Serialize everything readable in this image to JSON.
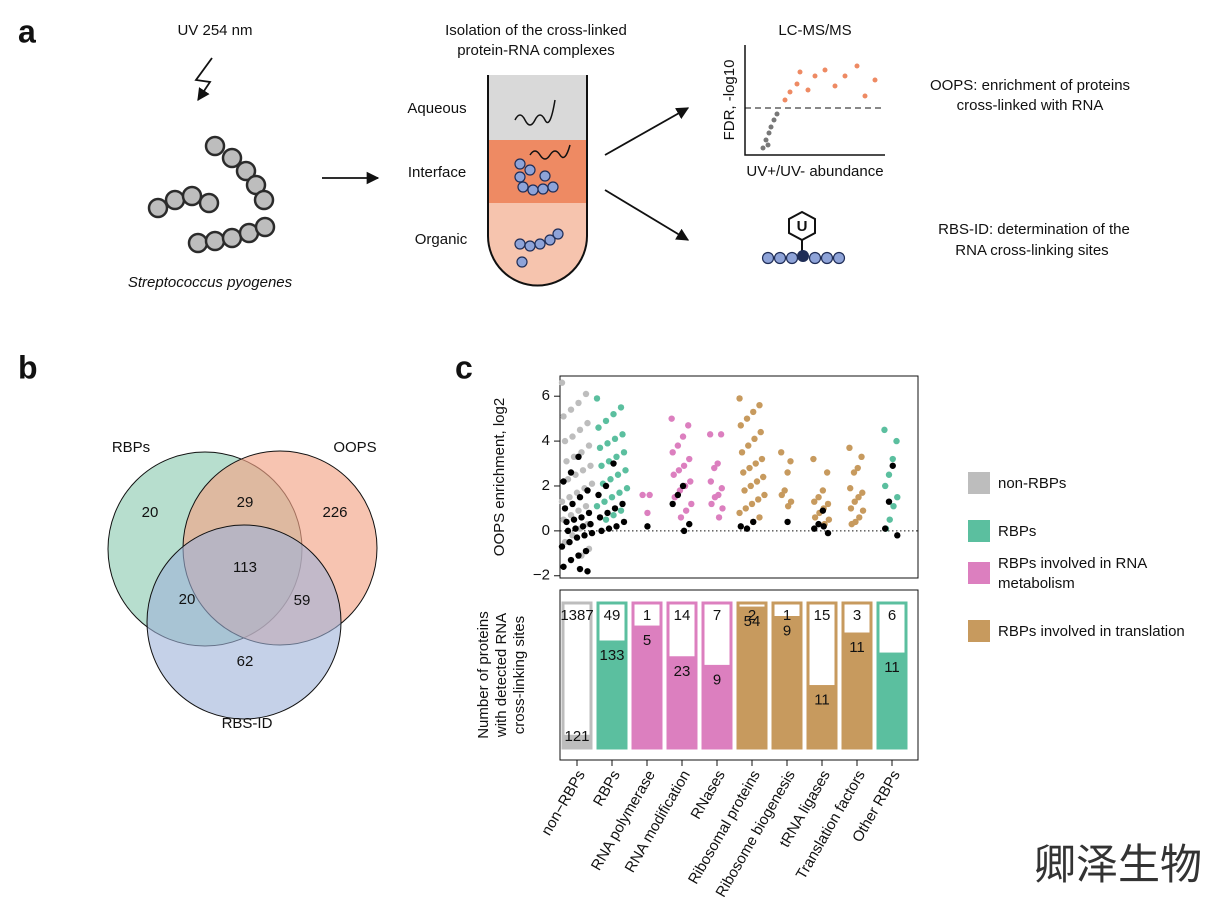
{
  "panel_a": {
    "label": "a",
    "uv": "UV 254 nm",
    "organism": "Streptococcus pyogenes",
    "tube_title": [
      "Isolation of the cross-linked",
      "protein-RNA complexes"
    ],
    "phases": [
      "Aqueous",
      "Interface",
      "Organic"
    ],
    "ms_title": "LC-MS/MS",
    "ms_ylabel": "FDR, -log10",
    "ms_xlabel": "UV+/UV- abundance",
    "oops": [
      "OOPS: enrichment of proteins",
      "cross-linked with RNA"
    ],
    "rbsid": [
      "RBS-ID: determination of the",
      "RNA cross-linking sites"
    ],
    "nucleotide": "U"
  },
  "panel_b": {
    "label": "b",
    "sets": [
      "RBPs",
      "OOPS",
      "RBS-ID"
    ],
    "regions": [
      20,
      29,
      226,
      113,
      20,
      59,
      62
    ]
  },
  "panel_c": {
    "label": "c",
    "categories": [
      "non−RBPs",
      "RBPs",
      "RNA polymerase",
      "RNA modification",
      "RNases",
      "Ribosomal proteins",
      "Ribosome biogenesis",
      "tRNA ligases",
      "Translation factors",
      "Other RBPs"
    ],
    "colors": [
      "#bdbdbd",
      "#5bbf9f",
      "#dc7fbf",
      "#dc7fbf",
      "#dc7fbf",
      "#c79a5e",
      "#c79a5e",
      "#c79a5e",
      "#c79a5e",
      "#5bbf9f"
    ],
    "ylabel": "OOPS enrichment, log2",
    "ylim": [
      -2.1,
      6.9
    ],
    "yticks": [
      {
        "value": -2,
        "label": "−2"
      },
      0,
      2,
      4,
      6
    ],
    "points": [
      {
        "other": [
          6.6,
          6.1,
          5.7,
          5.4,
          5.1,
          4.8,
          4.5,
          4.2,
          4.0,
          3.8,
          3.5,
          3.3,
          3.1,
          2.9,
          2.7,
          2.5,
          2.3,
          2.1,
          1.9,
          1.7,
          1.5,
          1.3,
          1.1,
          0.9,
          0.7,
          0.5,
          0.3,
          0.1,
          -0.2,
          -0.5,
          -0.8,
          -1.1
        ],
        "detected": [
          3.3,
          2.6,
          2.2,
          1.8,
          1.5,
          1.2,
          1.0,
          0.8,
          0.6,
          0.5,
          0.4,
          0.3,
          0.2,
          0.1,
          0.0,
          -0.1,
          -0.2,
          -0.3,
          -0.5,
          -0.7,
          -0.9,
          -1.1,
          -1.3,
          -1.6,
          -1.8,
          -1.7
        ]
      },
      {
        "other": [
          5.9,
          5.5,
          5.2,
          4.9,
          4.6,
          4.3,
          4.1,
          3.9,
          3.7,
          3.5,
          3.3,
          3.1,
          2.9,
          2.7,
          2.5,
          2.3,
          2.1,
          1.9,
          1.7,
          1.5,
          1.3,
          1.1,
          0.9,
          0.7,
          0.5
        ],
        "detected": [
          3.0,
          2.0,
          1.6,
          1.2,
          1.0,
          0.8,
          0.6,
          0.4,
          0.2,
          0.1,
          0.0
        ]
      },
      {
        "other": [
          1.6,
          1.6,
          0.8
        ],
        "detected": [
          0.2
        ]
      },
      {
        "other": [
          5.0,
          4.7,
          4.2,
          3.8,
          3.5,
          3.2,
          2.9,
          2.7,
          2.5,
          2.2,
          2.0,
          1.8,
          1.5,
          1.2,
          0.9,
          0.6
        ],
        "detected": [
          2.0,
          1.6,
          1.2,
          0.3,
          0.0
        ]
      },
      {
        "other": [
          4.3,
          4.3,
          3.0,
          2.8,
          2.2,
          1.9,
          1.6,
          1.5,
          1.2,
          1.0,
          0.6
        ],
        "detected": []
      },
      {
        "other": [
          5.9,
          5.6,
          5.3,
          5.0,
          4.7,
          4.4,
          4.1,
          3.8,
          3.5,
          3.2,
          3.0,
          2.8,
          2.6,
          2.4,
          2.2,
          2.0,
          1.8,
          1.6,
          1.4,
          1.2,
          1.0,
          0.8,
          0.6,
          0.4
        ],
        "detected": [
          0.4,
          0.1,
          0.2
        ]
      },
      {
        "other": [
          3.5,
          3.1,
          2.6,
          1.8,
          1.6,
          1.3,
          1.1
        ],
        "detected": [
          0.4
        ]
      },
      {
        "other": [
          3.2,
          2.6,
          1.8,
          1.5,
          1.3,
          1.2,
          1.0,
          0.8,
          0.6,
          0.5,
          0.3
        ],
        "detected": [
          0.9,
          0.3,
          0.1,
          -0.1,
          0.2
        ]
      },
      {
        "other": [
          3.7,
          3.3,
          2.8,
          2.6,
          1.9,
          1.7,
          1.5,
          1.3,
          1.0,
          0.9,
          0.6,
          0.4,
          0.3
        ],
        "detected": []
      },
      {
        "other": [
          4.5,
          4.0,
          3.2,
          2.5,
          2.0,
          1.5,
          1.1,
          0.5,
          0.1
        ],
        "detected": [
          2.9,
          1.3,
          0.1,
          -0.2
        ]
      }
    ],
    "bar_ylabel": [
      "Number of proteins",
      "with detected RNA",
      "cross-linking sites"
    ],
    "detected": [
      121,
      133,
      5,
      23,
      9,
      54,
      9,
      11,
      11,
      11
    ],
    "not_detected": [
      1387,
      49,
      1,
      14,
      7,
      2,
      1,
      15,
      3,
      6
    ],
    "legend": [
      {
        "lines": [
          "non-RBPs"
        ],
        "color": "#bdbdbd"
      },
      {
        "lines": [
          "RBPs"
        ],
        "color": "#5bbf9f"
      },
      {
        "lines": [
          "RBPs involved in RNA",
          "metabolism"
        ],
        "color": "#dc7fbf"
      },
      {
        "lines": [
          "RBPs involved in translation"
        ],
        "color": "#c79a5e"
      }
    ]
  },
  "watermark": "卿泽生物"
}
